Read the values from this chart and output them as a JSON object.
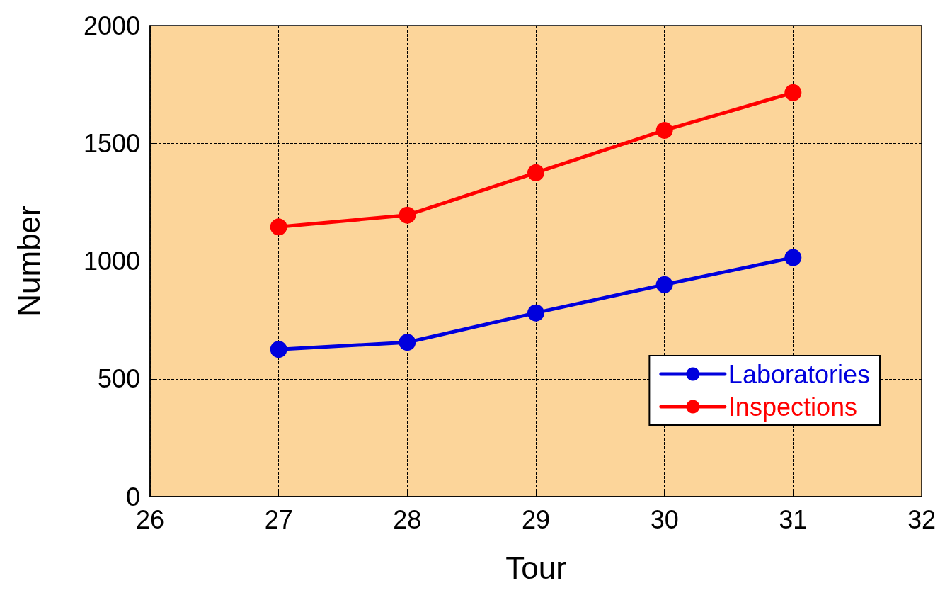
{
  "chart_data": {
    "type": "line",
    "xlabel": "Tour",
    "ylabel": "Number",
    "x": [
      27,
      28,
      29,
      30,
      31
    ],
    "series": [
      {
        "name": "Laboratories",
        "color": "#0000dd",
        "values": [
          625,
          655,
          780,
          900,
          1015
        ]
      },
      {
        "name": "Inspections",
        "color": "#ff0000",
        "values": [
          1145,
          1195,
          1375,
          1555,
          1715
        ]
      }
    ],
    "xlim": [
      26,
      32
    ],
    "xticks": [
      26,
      27,
      28,
      29,
      30,
      31,
      32
    ],
    "ylim": [
      0,
      2000
    ],
    "yticks": [
      0,
      500,
      1000,
      1500,
      2000
    ],
    "grid": true,
    "legend": "bottom right",
    "marker": "circle",
    "line_style": "solid"
  }
}
